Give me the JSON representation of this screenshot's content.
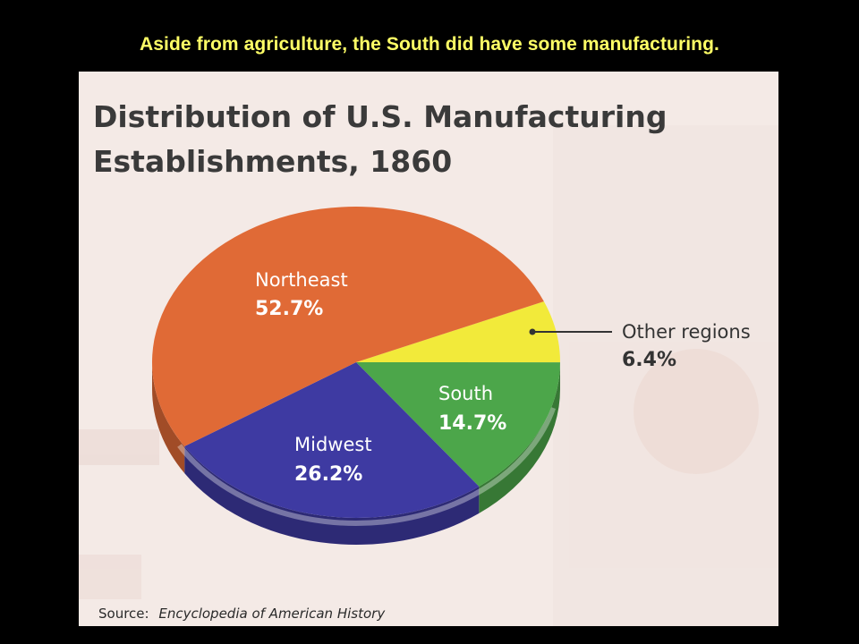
{
  "slide": {
    "caption": "Aside from agriculture, the South did have some manufacturing."
  },
  "chart_data": {
    "type": "pie",
    "title_lines": [
      "Distribution of U.S. Manufacturing",
      "Establishments, 1860"
    ],
    "slices": [
      {
        "name": "Northeast",
        "value": 52.7,
        "label": "52.7%",
        "color": "#e06a36"
      },
      {
        "name": "Midwest",
        "value": 26.2,
        "label": "26.2%",
        "color": "#3e3aa2"
      },
      {
        "name": "South",
        "value": 14.7,
        "label": "14.7%",
        "color": "#4ca64a"
      },
      {
        "name": "Other regions",
        "value": 6.4,
        "label": "6.4%",
        "color": "#f2ea3a"
      }
    ],
    "source_prefix": "Source:",
    "source_title": "Encyclopedia of American History"
  },
  "colors": {
    "background": "#000000",
    "caption": "#ffff66",
    "paper": "#f4eae6",
    "title_text": "#3a3a3a",
    "label_text": "#ffffff",
    "callout_text": "#333333"
  }
}
